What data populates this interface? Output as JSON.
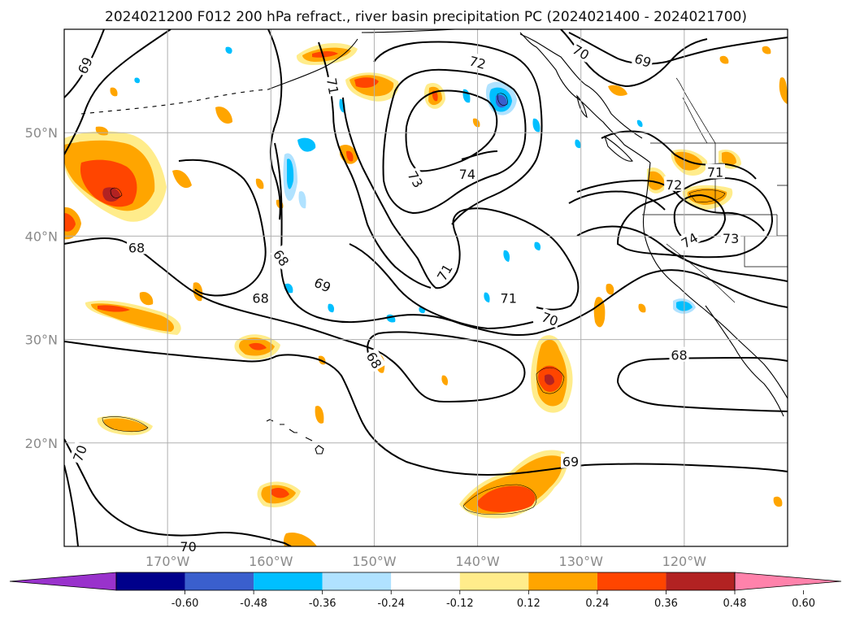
{
  "title": "2024021200 F012 200 hPa refract., river basin precipitation PC (2024021400 - 2024021700)",
  "map": {
    "lon_range": [
      -180,
      -110
    ],
    "lat_range": [
      10,
      60
    ],
    "lon_ticks": [
      {
        "value": -170,
        "label": "170°W"
      },
      {
        "value": -160,
        "label": "160°W"
      },
      {
        "value": -150,
        "label": "150°W"
      },
      {
        "value": -140,
        "label": "140°W"
      },
      {
        "value": -130,
        "label": "130°W"
      },
      {
        "value": -120,
        "label": "120°W"
      }
    ],
    "lat_ticks": [
      {
        "value": 20,
        "label": "20°N"
      },
      {
        "value": 30,
        "label": "30°N"
      },
      {
        "value": 40,
        "label": "40°N"
      },
      {
        "value": 50,
        "label": "50°N"
      }
    ],
    "grid": true
  },
  "colorbar": {
    "levels": [
      "-0.60",
      "-0.48",
      "-0.36",
      "-0.24",
      "-0.12",
      "0.12",
      "0.24",
      "0.36",
      "0.48",
      "0.60"
    ],
    "colors": [
      "#9932cc",
      "#00008b",
      "#3a5fcd",
      "#00bfff",
      "#b0e2ff",
      "#ffffff",
      "#ffec8b",
      "#ffa500",
      "#ff4500",
      "#b22222",
      "#ff82ab"
    ],
    "extend": "both"
  },
  "contour_labels": [
    {
      "text": "69",
      "lon": -178,
      "lat": 56.5,
      "rot": -65
    },
    {
      "text": "71",
      "lon": -154,
      "lat": 54.5,
      "rot": 80
    },
    {
      "text": "72",
      "lon": -140,
      "lat": 56.8,
      "rot": 15
    },
    {
      "text": "70",
      "lon": -130,
      "lat": 57.8,
      "rot": 30
    },
    {
      "text": "69",
      "lon": -124,
      "lat": 57.0,
      "rot": 20
    },
    {
      "text": "73",
      "lon": -146,
      "lat": 45.5,
      "rot": 60
    },
    {
      "text": "74",
      "lon": -141,
      "lat": 46.0,
      "rot": 0
    },
    {
      "text": "72",
      "lon": -121,
      "lat": 45.0,
      "rot": 0
    },
    {
      "text": "71",
      "lon": -117,
      "lat": 46.2,
      "rot": 0
    },
    {
      "text": "74",
      "lon": -119.5,
      "lat": 39.6,
      "rot": -30
    },
    {
      "text": "73",
      "lon": -115.5,
      "lat": 39.8,
      "rot": 0
    },
    {
      "text": "68",
      "lon": -173,
      "lat": 38.9,
      "rot": 0
    },
    {
      "text": "68",
      "lon": -159,
      "lat": 37.9,
      "rot": 55
    },
    {
      "text": "68",
      "lon": -161,
      "lat": 34.0,
      "rot": 0
    },
    {
      "text": "69",
      "lon": -155,
      "lat": 35.3,
      "rot": 25
    },
    {
      "text": "71",
      "lon": -143.2,
      "lat": 36.5,
      "rot": -60
    },
    {
      "text": "71",
      "lon": -137,
      "lat": 34.0,
      "rot": 0
    },
    {
      "text": "70",
      "lon": -133,
      "lat": 32.0,
      "rot": 20
    },
    {
      "text": "68",
      "lon": -150,
      "lat": 28.0,
      "rot": 60
    },
    {
      "text": "68",
      "lon": -120.5,
      "lat": 28.5,
      "rot": 0
    },
    {
      "text": "69",
      "lon": -131,
      "lat": 18.2,
      "rot": 0
    },
    {
      "text": "70",
      "lon": -178.5,
      "lat": 19.0,
      "rot": -70
    },
    {
      "text": "70",
      "lon": -168,
      "lat": 10.0,
      "rot": 0
    }
  ]
}
